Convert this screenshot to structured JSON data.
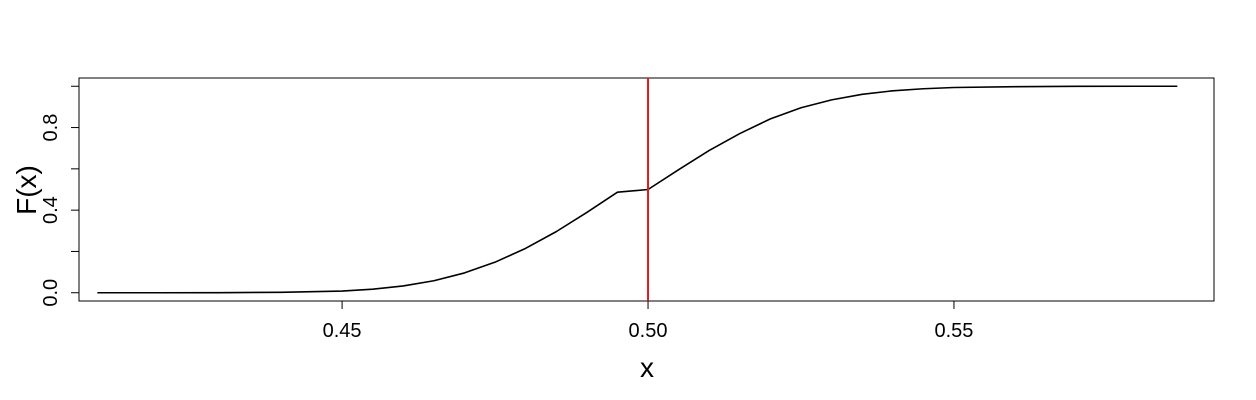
{
  "chart_data": {
    "type": "line",
    "title": "",
    "xlabel": "x",
    "ylabel": "F(x)",
    "xlim": [
      0.407,
      0.5925
    ],
    "ylim": [
      -0.04,
      1.04
    ],
    "x_ticks": [
      0.45,
      0.5,
      0.55
    ],
    "x_tick_labels": [
      "0.45",
      "0.50",
      "0.55"
    ],
    "y_ticks": [
      0.0,
      0.2,
      0.4,
      0.6,
      0.8,
      1.0
    ],
    "y_tick_labels": [
      "0.0",
      "",
      "0.4",
      "",
      "0.8",
      ""
    ],
    "grid": false,
    "series": [
      {
        "color": "#000000",
        "x": [
          0.41,
          0.42,
          0.43,
          0.44,
          0.45,
          0.455,
          0.46,
          0.465,
          0.47,
          0.475,
          0.48,
          0.485,
          0.49,
          0.495,
          0.5,
          0.505,
          0.51,
          0.515,
          0.52,
          0.525,
          0.53,
          0.535,
          0.54,
          0.545,
          0.55,
          0.56,
          0.57,
          0.58,
          0.5865
        ],
        "y": [
          0.0,
          0.0,
          0.0005,
          0.002,
          0.008,
          0.017,
          0.033,
          0.058,
          0.096,
          0.148,
          0.215,
          0.296,
          0.389,
          0.487,
          0.5,
          0.596,
          0.689,
          0.771,
          0.842,
          0.896,
          0.934,
          0.961,
          0.978,
          0.988,
          0.994,
          0.998,
          0.9995,
          1.0,
          1.0
        ]
      }
    ],
    "vlines": [
      {
        "x": 0.5,
        "color": "#e31a1c"
      }
    ]
  }
}
